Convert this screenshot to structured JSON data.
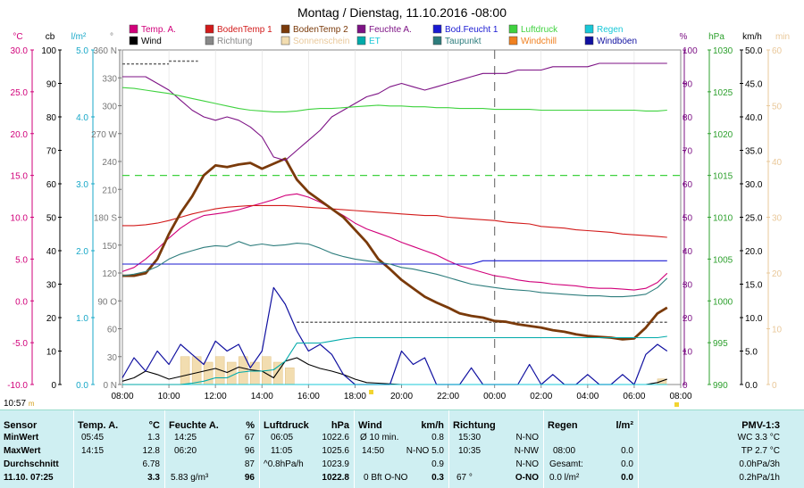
{
  "title": "Montag / Dienstag, 11.10.2016  -08:00",
  "clock": {
    "time": "10:57",
    "unit": "m"
  },
  "legend": [
    {
      "label": "Temp. A.",
      "color": "#d1007a"
    },
    {
      "label": "BodenTemp 1",
      "color": "#d21a1a"
    },
    {
      "label": "BodenTemp 2",
      "color": "#7a3a0a"
    },
    {
      "label": "Feuchte A.",
      "color": "#7d1285"
    },
    {
      "label": "Bod.Feucht 1",
      "color": "#1a1ad2"
    },
    {
      "label": "Luftdruck",
      "color": "#3fd23f"
    },
    {
      "label": "Regen",
      "color": "#18c8d8"
    },
    {
      "label": "Wind",
      "color": "#000000"
    },
    {
      "label": "Richtung",
      "color": "#888888"
    },
    {
      "label": "Sonnenschein",
      "color": "#f2ddb0"
    },
    {
      "label": "ET",
      "color": "#00aaaa"
    },
    {
      "label": "Taupunkt",
      "color": "#2e7d7d"
    },
    {
      "label": "Windchill",
      "color": "#f08020"
    },
    {
      "label": "Windböen",
      "color": "#1010a0"
    }
  ],
  "axes": {
    "left_units": [
      "°C",
      "cb",
      "l/m²",
      "°"
    ],
    "right_units": [
      "%",
      "hPa",
      "km/h",
      "min"
    ],
    "temp_ticks": [
      "30.0",
      "25.0",
      "20.0",
      "15.0",
      "10.0",
      "5.0",
      "0.0",
      "-5.0",
      "-10.0"
    ],
    "cb_ticks": [
      "100",
      "90",
      "80",
      "70",
      "60",
      "50",
      "40",
      "30",
      "20",
      "10",
      "0"
    ],
    "rain_ticks": [
      "5.0",
      "4.0",
      "3.0",
      "2.0",
      "1.0",
      "0.0"
    ],
    "dir_ticks": [
      "360 N",
      "330",
      "300",
      "270 W",
      "240",
      "210",
      "180 S",
      "150",
      "120",
      "90 O",
      "60",
      "30",
      "0 N"
    ],
    "hum_ticks": [
      "100",
      "90",
      "80",
      "70",
      "60",
      "50",
      "40",
      "30",
      "20",
      "10",
      "0"
    ],
    "press_ticks": [
      "1030",
      "1025",
      "1020",
      "1015",
      "1010",
      "1005",
      "1000",
      "995",
      "990"
    ],
    "kmh_ticks": [
      "50.0",
      "45.0",
      "40.0",
      "35.0",
      "30.0",
      "25.0",
      "20.0",
      "15.0",
      "10.0",
      "5.0",
      "0.0"
    ],
    "min_ticks": [
      "60",
      "50",
      "40",
      "30",
      "20",
      "10",
      "0"
    ],
    "x_ticks": [
      "08:00",
      "10:00",
      "12:00",
      "14:00",
      "16:00",
      "18:00",
      "20:00",
      "22:00",
      "00:00",
      "02:00",
      "04:00",
      "06:00",
      "08:00"
    ]
  },
  "chart_data": {
    "type": "line",
    "x": [
      "08:00",
      "08:30",
      "09:00",
      "09:30",
      "10:00",
      "10:30",
      "11:00",
      "11:30",
      "12:00",
      "12:30",
      "13:00",
      "13:30",
      "14:00",
      "14:30",
      "15:00",
      "15:30",
      "16:00",
      "16:30",
      "17:00",
      "17:30",
      "18:00",
      "18:30",
      "19:00",
      "19:30",
      "20:00",
      "20:30",
      "21:00",
      "21:30",
      "22:00",
      "22:30",
      "23:00",
      "23:30",
      "00:00",
      "00:30",
      "01:00",
      "01:30",
      "02:00",
      "02:30",
      "03:00",
      "03:30",
      "04:00",
      "04:30",
      "05:00",
      "05:30",
      "06:00",
      "06:30",
      "07:00",
      "07:25"
    ],
    "series": [
      {
        "name": "Temp. A.",
        "axis": "°C",
        "values": [
          3.5,
          4.0,
          5.0,
          6.2,
          7.5,
          8.7,
          9.6,
          10.2,
          10.4,
          10.6,
          10.9,
          11.3,
          11.7,
          12.1,
          12.6,
          12.8,
          12.4,
          11.8,
          11.0,
          10.2,
          9.3,
          8.6,
          8.1,
          7.6,
          7.0,
          6.5,
          6.0,
          5.5,
          4.8,
          4.2,
          3.8,
          3.4,
          3.0,
          2.8,
          2.5,
          2.3,
          2.2,
          2.0,
          1.9,
          1.8,
          1.6,
          1.5,
          1.5,
          1.4,
          1.3,
          1.5,
          2.2,
          3.3
        ]
      },
      {
        "name": "BodenTemp 1",
        "axis": "°C",
        "values": [
          9.0,
          9.0,
          9.1,
          9.3,
          9.6,
          10.0,
          10.4,
          10.7,
          11.0,
          11.2,
          11.3,
          11.4,
          11.4,
          11.4,
          11.4,
          11.3,
          11.2,
          11.1,
          11.0,
          10.9,
          10.8,
          10.7,
          10.6,
          10.5,
          10.4,
          10.3,
          10.2,
          10.2,
          10.0,
          9.9,
          9.8,
          9.7,
          9.6,
          9.4,
          9.3,
          9.2,
          8.9,
          8.8,
          8.7,
          8.5,
          8.4,
          8.3,
          8.2,
          8.0,
          7.9,
          7.8,
          7.7,
          7.6
        ]
      },
      {
        "name": "BodenTemp 2",
        "axis": "°C",
        "values": [
          3.0,
          3.0,
          3.3,
          5.0,
          8.0,
          10.5,
          12.5,
          15.0,
          16.2,
          16.0,
          16.3,
          16.5,
          15.8,
          16.4,
          17.0,
          14.5,
          13.0,
          12.0,
          11.0,
          10.0,
          8.5,
          7.0,
          5.0,
          3.8,
          2.5,
          1.5,
          0.5,
          -0.2,
          -0.8,
          -1.5,
          -1.8,
          -2.0,
          -2.4,
          -2.5,
          -2.8,
          -3.0,
          -3.2,
          -3.5,
          -3.7,
          -4.0,
          -4.2,
          -4.3,
          -4.4,
          -4.6,
          -4.5,
          -3.2,
          -1.5,
          -0.8
        ]
      },
      {
        "name": "Feuchte A.",
        "axis": "%",
        "values": [
          92,
          92,
          92,
          90,
          88,
          85,
          82,
          80,
          79,
          80,
          79,
          77,
          74,
          68,
          67,
          70,
          73,
          76,
          80,
          82,
          84,
          86,
          87,
          89,
          90,
          89,
          88,
          89,
          90,
          91,
          92,
          93,
          93,
          93,
          94,
          94,
          94,
          95,
          95,
          95,
          95,
          96,
          96,
          96,
          96,
          96,
          96,
          96
        ]
      },
      {
        "name": "Bod.Feucht 1",
        "axis": "cb",
        "values": [
          36,
          36,
          36,
          36,
          36,
          36,
          36,
          36,
          36,
          36,
          36,
          36,
          36,
          36,
          36,
          36,
          36,
          36,
          36,
          36,
          36,
          36,
          36,
          36,
          36,
          36,
          36,
          36,
          36,
          36,
          36,
          37,
          37,
          37,
          37,
          37,
          37,
          37,
          37,
          37,
          37,
          37,
          37,
          37,
          37,
          37,
          37,
          37
        ]
      },
      {
        "name": "Luftdruck",
        "axis": "hPa",
        "values": [
          1025.5,
          1025.4,
          1025.2,
          1025.0,
          1024.8,
          1024.5,
          1024.2,
          1023.9,
          1023.6,
          1023.3,
          1023.0,
          1022.8,
          1022.7,
          1022.6,
          1022.6,
          1022.7,
          1022.9,
          1023.0,
          1023.0,
          1023.1,
          1023.2,
          1023.3,
          1023.4,
          1023.3,
          1023.3,
          1023.2,
          1023.2,
          1023.1,
          1023.1,
          1023.0,
          1023.0,
          1023.0,
          1022.9,
          1022.9,
          1022.9,
          1022.9,
          1022.8,
          1022.8,
          1022.8,
          1022.8,
          1022.8,
          1022.8,
          1022.8,
          1022.8,
          1022.8,
          1022.7,
          1022.7,
          1022.8
        ]
      },
      {
        "name": "Wind",
        "axis": "km/h",
        "values": [
          0.5,
          1.0,
          2.0,
          1.5,
          0.8,
          1.2,
          1.6,
          2.0,
          2.4,
          1.8,
          2.6,
          2.2,
          2.0,
          1.0,
          3.5,
          4.0,
          3.0,
          2.4,
          2.0,
          1.5,
          0.8,
          0.3,
          0.2,
          0.1,
          0,
          0,
          0,
          0,
          0,
          0,
          0,
          0,
          0,
          0,
          0,
          0,
          0,
          0,
          0,
          0,
          0,
          0,
          0,
          0,
          0,
          0,
          0.3,
          0.8
        ]
      },
      {
        "name": "Windböen",
        "axis": "km/h",
        "values": [
          1.0,
          4.0,
          2.0,
          5.0,
          3.0,
          6.0,
          4.5,
          3.0,
          6.5,
          5.0,
          6.0,
          2.5,
          5.0,
          14.5,
          12.0,
          8.0,
          5.0,
          6.0,
          4.5,
          1.5,
          0,
          0,
          0,
          0,
          5.0,
          3.0,
          4.0,
          0,
          0,
          0,
          2.5,
          0,
          0,
          0,
          0,
          3.0,
          0,
          1.5,
          0,
          0,
          1.5,
          0,
          0,
          1.5,
          0,
          4.5,
          6.0,
          5.0
        ]
      },
      {
        "name": "Taupunkt",
        "axis": "°C",
        "values": [
          3.0,
          3.2,
          3.5,
          4.1,
          5.0,
          5.6,
          6.0,
          6.4,
          6.6,
          6.5,
          7.1,
          6.6,
          6.8,
          6.6,
          6.7,
          6.9,
          6.8,
          6.3,
          5.7,
          5.3,
          5.0,
          4.8,
          4.6,
          4.4,
          4.0,
          3.8,
          3.5,
          3.2,
          2.8,
          2.4,
          2.0,
          1.8,
          1.6,
          1.4,
          1.3,
          1.2,
          1.0,
          0.9,
          0.8,
          0.7,
          0.6,
          0.6,
          0.5,
          0.5,
          0.6,
          0.8,
          1.6,
          2.7
        ]
      },
      {
        "name": "Regen",
        "axis": "l/m²",
        "values": [
          0,
          0,
          0,
          0,
          0,
          0,
          0,
          0,
          0,
          0,
          0,
          0,
          0,
          0,
          0,
          0,
          0,
          0,
          0,
          0,
          0,
          0,
          0,
          0,
          0,
          0,
          0,
          0,
          0,
          0,
          0,
          0,
          0,
          0,
          0,
          0,
          0,
          0,
          0,
          0,
          0,
          0,
          0,
          0,
          0,
          0,
          0,
          0
        ]
      },
      {
        "name": "ET",
        "axis": "l/m²",
        "values": [
          0,
          0,
          0,
          0,
          0,
          0,
          0.02,
          0.05,
          0.1,
          0.1,
          0.18,
          0.2,
          0.2,
          0.22,
          0.35,
          0.62,
          0.62,
          0.62,
          0.65,
          0.68,
          0.7,
          0.7,
          0.7,
          0.7,
          0.7,
          0.7,
          0.7,
          0.7,
          0.7,
          0.7,
          0.7,
          0.7,
          0.7,
          0.7,
          0.7,
          0.7,
          0.7,
          0.7,
          0.7,
          0.7,
          0.7,
          0.7,
          0.7,
          0.7,
          0.7,
          0.7,
          0.7,
          0.72
        ]
      }
    ],
    "richtung": {
      "name": "Richtung",
      "axis": "°",
      "segments": [
        {
          "from": "08:00",
          "to": "10:00",
          "value": 345
        },
        {
          "from": "10:00",
          "to": "11:15",
          "value": 348
        },
        {
          "from": "15:30",
          "to": "23:59",
          "value": 67
        },
        {
          "from": "00:00",
          "to": "07:25",
          "value": 67
        }
      ]
    },
    "sonnenschein": {
      "name": "Sonnenschein",
      "axis": "min",
      "values": [
        0,
        0,
        0,
        0,
        0,
        5,
        5,
        4,
        5,
        4,
        5,
        4,
        5,
        4,
        3,
        0,
        0,
        0,
        0,
        0,
        0,
        0,
        0,
        0,
        0,
        0,
        0,
        0,
        0,
        0,
        0,
        0,
        0,
        0,
        0,
        0,
        0,
        0,
        0,
        0,
        0,
        0,
        0,
        0,
        0,
        0,
        1,
        0
      ]
    },
    "ranges": {
      "temp": [
        -10,
        30
      ],
      "cb": [
        0,
        100
      ],
      "rain": [
        0,
        5
      ],
      "dir": [
        0,
        360
      ],
      "hum": [
        0,
        100
      ],
      "press": [
        990,
        1030
      ],
      "kmh": [
        0,
        50
      ],
      "min": [
        0,
        60
      ]
    }
  },
  "stats": {
    "sensor": {
      "header": "Sensor",
      "min": "MinWert",
      "max": "MaxWert",
      "avg": "Durchschnitt",
      "now": "11.10. 07:25"
    },
    "temp": {
      "header": "Temp. A.",
      "unit": "°C",
      "min_t": "05:45",
      "min_v": "1.3",
      "max_t": "14:15",
      "max_v": "12.8",
      "avg_v": "6.78",
      "now_v": "3.3"
    },
    "hum": {
      "header": "Feuchte A.",
      "unit": "%",
      "min_t": "14:25",
      "min_v": "67",
      "max_t": "06:20",
      "max_v": "96",
      "avg_v": "87",
      "now_extra": "5.83 g/m³",
      "now_v": "96"
    },
    "press": {
      "header": "Luftdruck",
      "unit": "hPa",
      "min_t": "06:05",
      "min_v": "1022.6",
      "max_t": "11:05",
      "max_v": "1025.6",
      "avg_t": "^0.8hPa/h",
      "avg_v": "1023.9",
      "now_v": "1022.8"
    },
    "wind": {
      "header": "Wind",
      "unit": "km/h",
      "min_t": "Ø 10 min.",
      "min_v": "0.8",
      "max_t": "14:50",
      "max_dir": "N-NO 5.0",
      "avg_v": "0.9",
      "now_extra": "0 Bft O-NO",
      "now_v": "0.3"
    },
    "dir": {
      "header": "Richtung",
      "min_t": "15:30",
      "min_v": "N-NO",
      "max_t": "10:35",
      "max_v": "N-NW",
      "avg_v": "N-NO",
      "now_t": "67 °",
      "now_v": "O-NO"
    },
    "rain": {
      "header": "Regen",
      "unit": "l/m²",
      "min_t": "08:00",
      "min_v": "0.0",
      "max_t": "Gesamt:",
      "max_v": "0.0",
      "now_t": "0.0 l/m²",
      "now_v": "0.0"
    },
    "pmv": {
      "header": "PMV-1:3",
      "l1": "WC 3.3 °C",
      "l2": "TP 2.7 °C",
      "l3": "0.0hPa/3h",
      "l4": "0.2hPa/1h"
    }
  }
}
